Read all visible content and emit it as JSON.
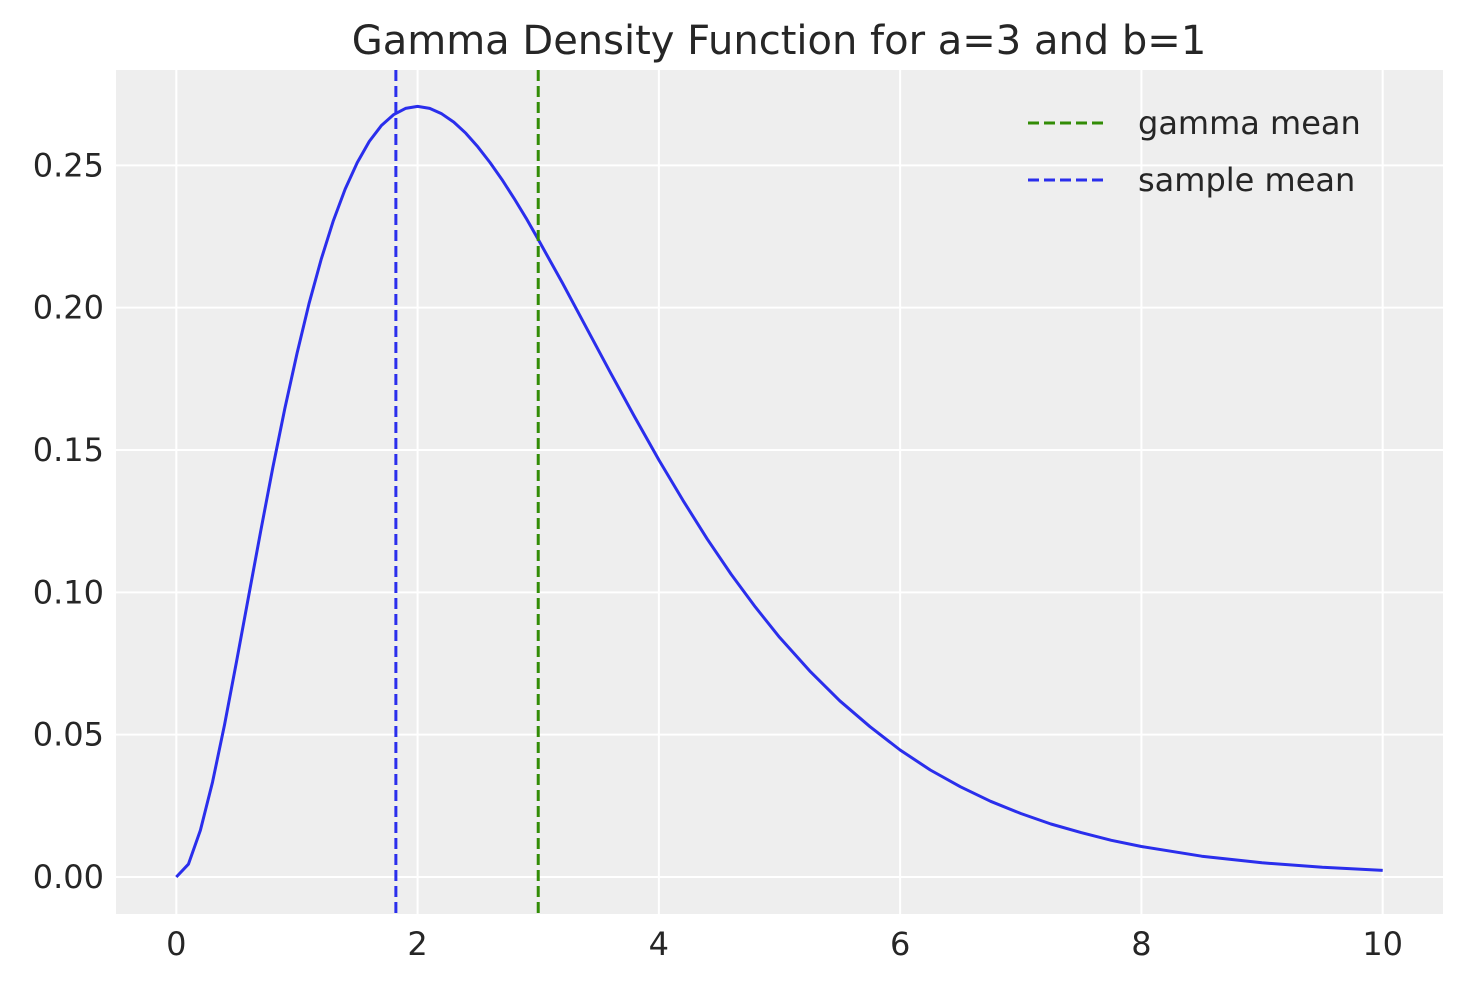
{
  "chart_data": {
    "type": "line",
    "title": "Gamma Density Function for a=3 and b=1",
    "xlabel": "",
    "ylabel": "",
    "xlim": [
      -0.5,
      10.5
    ],
    "ylim": [
      -0.013,
      0.2835
    ],
    "x_ticks": [
      0,
      2,
      4,
      6,
      8,
      10
    ],
    "x_tick_labels": [
      "0",
      "2",
      "4",
      "6",
      "8",
      "10"
    ],
    "y_ticks": [
      0.0,
      0.05,
      0.1,
      0.15,
      0.2,
      0.25
    ],
    "y_tick_labels": [
      "0.00",
      "0.05",
      "0.10",
      "0.15",
      "0.20",
      "0.25"
    ],
    "grid": true,
    "legend_position": "upper right",
    "series": [
      {
        "kind": "curve",
        "color": "#2a2eec",
        "x": [
          0,
          0.1,
          0.2,
          0.3,
          0.4,
          0.5,
          0.6,
          0.7,
          0.8,
          0.9,
          1.0,
          1.1,
          1.2,
          1.3,
          1.4,
          1.5,
          1.6,
          1.7,
          1.8,
          1.9,
          2.0,
          2.1,
          2.2,
          2.3,
          2.4,
          2.5,
          2.6,
          2.7,
          2.8,
          2.9,
          3.0,
          3.2,
          3.4,
          3.6,
          3.8,
          4.0,
          4.2,
          4.4,
          4.6,
          4.8,
          5.0,
          5.25,
          5.5,
          5.75,
          6.0,
          6.25,
          6.5,
          6.75,
          7.0,
          7.25,
          7.5,
          7.75,
          8.0,
          8.5,
          9.0,
          9.5,
          10.0
        ],
        "y": [
          0.0,
          0.0045,
          0.0164,
          0.0333,
          0.0536,
          0.0758,
          0.0988,
          0.1217,
          0.1438,
          0.1647,
          0.1839,
          0.2014,
          0.2169,
          0.2303,
          0.2417,
          0.251,
          0.2584,
          0.264,
          0.2678,
          0.27,
          0.2707,
          0.27,
          0.2681,
          0.2652,
          0.2613,
          0.2565,
          0.251,
          0.245,
          0.2384,
          0.2314,
          0.224,
          0.2087,
          0.1929,
          0.1771,
          0.1616,
          0.1465,
          0.1323,
          0.1188,
          0.1063,
          0.0948,
          0.0842,
          0.0724,
          0.0619,
          0.0528,
          0.0446,
          0.0376,
          0.0317,
          0.0266,
          0.0223,
          0.0186,
          0.0156,
          0.0129,
          0.0107,
          0.0073,
          0.005,
          0.0034,
          0.0023
        ]
      },
      {
        "kind": "vline",
        "name": "gamma mean",
        "color": "#328c06",
        "x": 3.0
      },
      {
        "kind": "vline",
        "name": "sample mean",
        "color": "#2a2eec",
        "x": 1.82
      }
    ],
    "background_color": "#eeeeee",
    "grid_color": "#ffffff"
  }
}
